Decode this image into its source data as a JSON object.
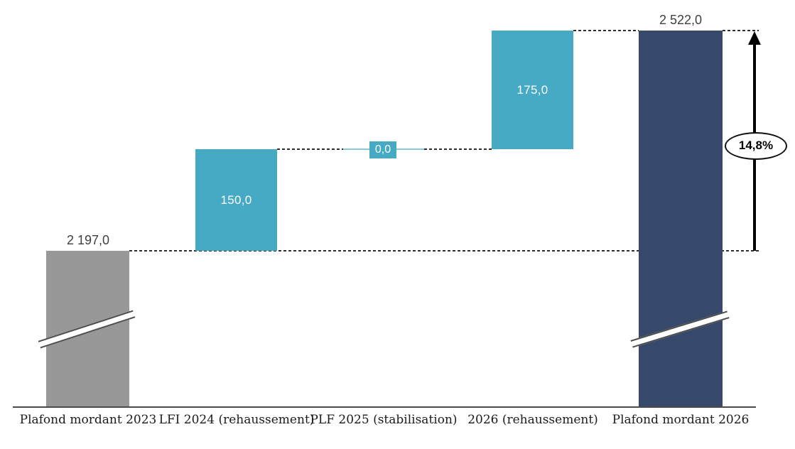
{
  "chart_data": {
    "type": "bar",
    "subtype": "waterfall",
    "title": "",
    "categories": [
      "Plafond mordant 2023",
      "LFI 2024 (rehaussement)",
      "PLF 2025 (stabilisation)",
      "2026 (rehaussement)",
      "Plafond mordant 2026"
    ],
    "values": [
      2197.0,
      150.0,
      0.0,
      175.0,
      2522.0
    ],
    "bar_roles": [
      "total",
      "increment",
      "increment",
      "increment",
      "total"
    ],
    "increment_start_levels": [
      null,
      2197.0,
      2347.0,
      2347.0,
      null
    ],
    "cumulative_levels": [
      2197.0,
      2347.0,
      2347.0,
      2522.0,
      2522.0
    ],
    "data_labels": [
      "2 197,0",
      "150,0",
      "0,0",
      "175,0",
      "2 522,0"
    ],
    "annotation": "14,8%",
    "axis_break_bars": [
      0,
      4
    ],
    "grid": false,
    "legend": false,
    "xlabel": "",
    "ylabel": "",
    "colors": {
      "total_bar_2023": "#989898",
      "increment_bars": "#46AAC5",
      "total_bar_2026": "#36496B",
      "zero_connector_line": "#8CC9DB",
      "dashed_connectors": "#2e2e2e",
      "arrow": "#000000",
      "badge_border": "#101010",
      "value_label_dark": "#3f3f3f",
      "value_label_light": "#ffffff"
    }
  }
}
